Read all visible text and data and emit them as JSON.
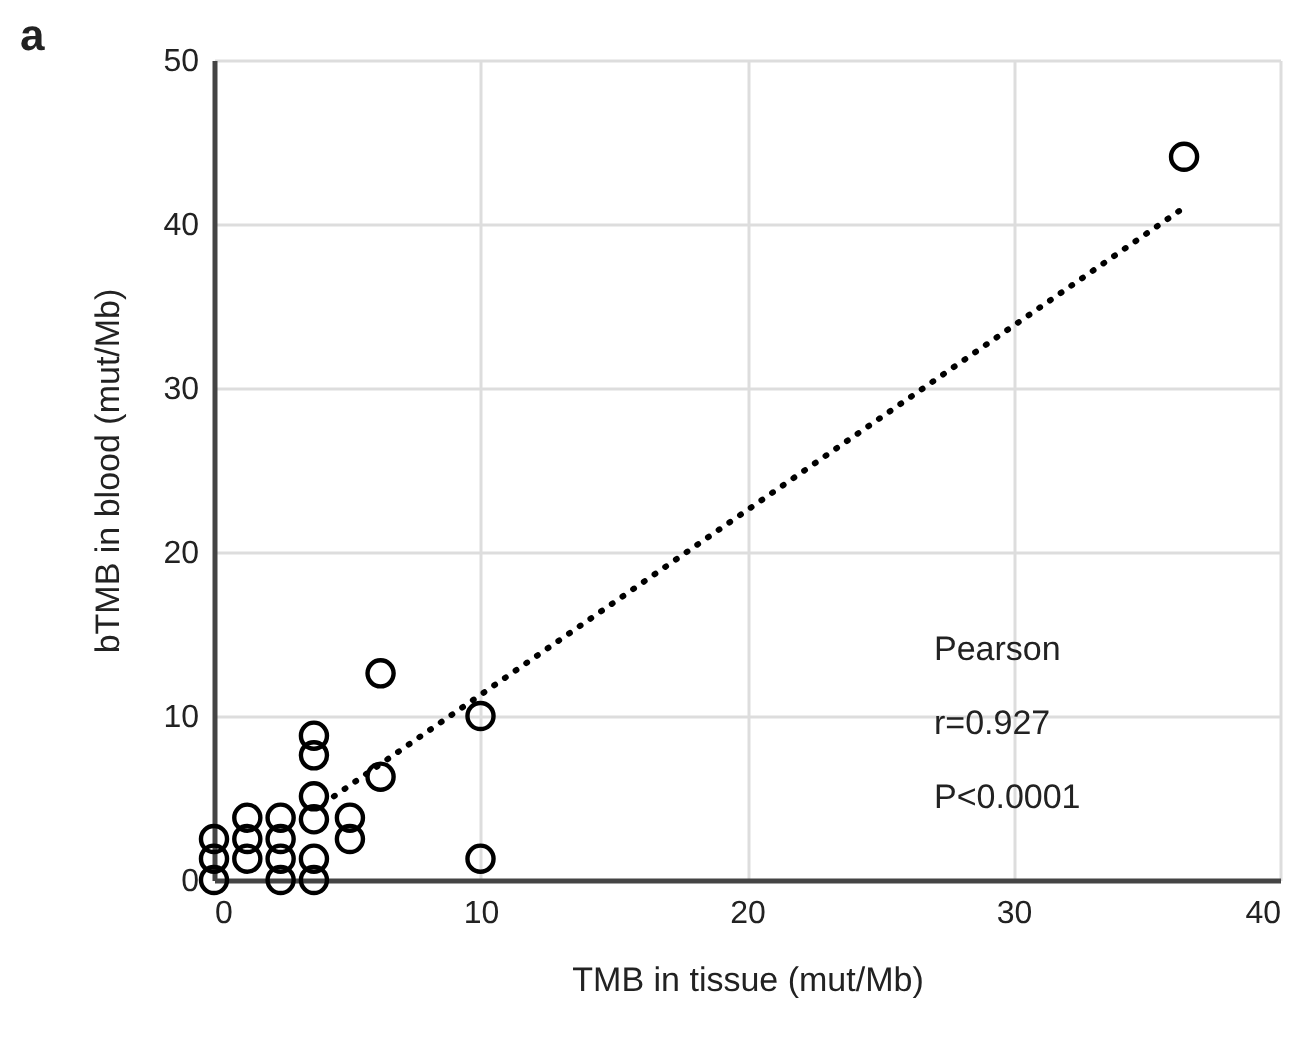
{
  "chart_data": {
    "type": "scatter",
    "xlabel": "TMB in tissue (mut/Mb)",
    "ylabel": "bTMB in blood (mut/Mb)",
    "annotations": [
      "a",
      "Pearson",
      "r=0.927",
      "P<0.0001"
    ],
    "series": [
      {
        "color": "#000000",
        "x": [
          36.4,
          6.25,
          10,
          10,
          6.25,
          3.75,
          3.75,
          3.75,
          3.75,
          3.75,
          3.75,
          5.1,
          5.1,
          2.5,
          2.5,
          2.5,
          2.5,
          1.25,
          1.25,
          1.25,
          0,
          0,
          0
        ],
        "values": [
          44.1,
          12.6,
          10,
          1.3,
          6.3,
          8.8,
          7.6,
          5.1,
          3.7,
          1.3,
          0,
          3.8,
          2.5,
          3.8,
          2.5,
          1.3,
          0,
          3.8,
          2.5,
          1.3,
          2.5,
          1.3,
          0
        ]
      },
      {
        "type": "line",
        "color": "#000000",
        "line_style": "dotted",
        "marker": "none",
        "x": [
          4.5,
          36.4
        ],
        "values": [
          5.1,
          41.0
        ]
      }
    ],
    "xlim": [
      0,
      40
    ],
    "xticks": [
      0,
      10,
      20,
      30,
      40
    ],
    "ylim": [
      0,
      50
    ],
    "yticks": [
      0,
      10,
      20,
      30,
      40,
      50
    ],
    "grid": true,
    "marker": "circle"
  }
}
